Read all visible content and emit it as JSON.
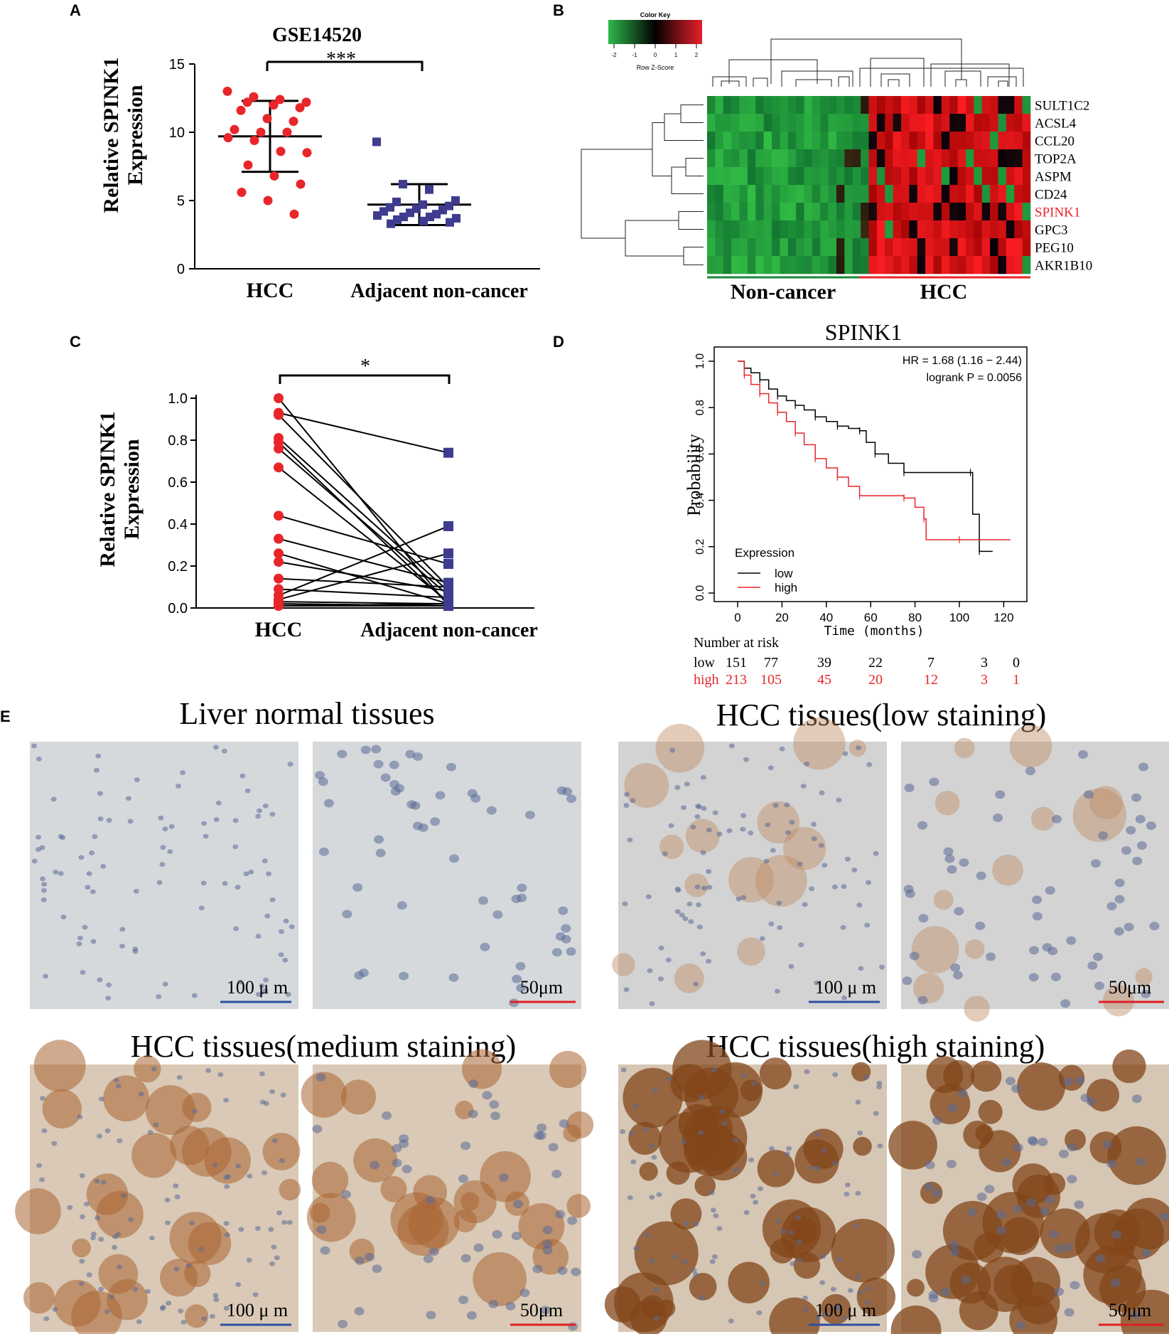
{
  "panel_labels": [
    "A",
    "B",
    "C",
    "D",
    "E"
  ],
  "colors": {
    "red": "#e8262a",
    "blue": "#3f3b8f",
    "black": "#000000",
    "green": "#1a8a3a",
    "scale_blue": "#2d4fa0",
    "scale_red": "#e01e24"
  },
  "chart_data": [
    {
      "panel": "A",
      "type": "scatter",
      "title": "GSE14520",
      "ylabel": "Relative  SPINK1 Expression",
      "ylabel_lines": [
        "Relative  SPINK1",
        "Expression"
      ],
      "categories": [
        "HCC",
        "Adjacent non-cancer"
      ],
      "ylim": [
        0,
        15
      ],
      "yticks": [
        0,
        5,
        10,
        15
      ],
      "significance": "***",
      "series": [
        {
          "marker": "circle",
          "values": [
            13.0,
            12.6,
            12.4,
            12.2,
            12.2,
            12.0,
            11.8,
            11.6,
            11.0,
            10.8,
            10.2,
            10.0,
            10.0,
            9.6,
            9.4,
            8.6,
            8.5,
            7.6,
            6.8,
            6.2,
            5.6,
            5.0,
            4.0
          ],
          "mean": 9.7,
          "sd_low": 7.1,
          "sd_high": 12.3
        },
        {
          "marker": "square",
          "values": [
            9.3,
            6.2,
            5.8,
            5.0,
            4.9,
            4.7,
            4.6,
            4.5,
            4.4,
            4.3,
            4.2,
            4.1,
            4.0,
            3.9,
            3.8,
            3.8,
            3.7,
            3.6,
            3.5,
            3.4,
            3.3
          ],
          "mean": 4.7,
          "sd_low": 3.2,
          "sd_high": 6.2
        }
      ]
    },
    {
      "panel": "B",
      "type": "heatmap",
      "color_key_title": "Color Key",
      "color_key_xlabel": "Row Z-Score",
      "color_key_ticks": [
        "-2",
        "-1",
        "0",
        "1",
        "2"
      ],
      "rows": [
        "SULT1C2",
        "ACSL4",
        "CCL20",
        "TOP2A",
        "ASPM",
        "CD24",
        "SPINK1",
        "GPC3",
        "PEG10",
        "AKR1B10"
      ],
      "highlight_row": "SPINK1",
      "groups": [
        "Non-cancer",
        "HCC"
      ],
      "n_columns": 40,
      "noncancer_columns": 20
    },
    {
      "panel": "C",
      "type": "line",
      "ylabel": "Relative  SPINK1 Expression",
      "ylabel_lines": [
        "Relative  SPINK1",
        "Expression"
      ],
      "categories": [
        "HCC",
        "Adjacent non-cancer"
      ],
      "ylim": [
        0,
        1.0
      ],
      "yticks": [
        "0.0",
        "0.2",
        "0.4",
        "0.6",
        "0.8",
        "1.0"
      ],
      "significance": "*",
      "pairs": [
        [
          1.0,
          0.01
        ],
        [
          0.93,
          0.74
        ],
        [
          0.92,
          0.1
        ],
        [
          0.81,
          0.08
        ],
        [
          0.79,
          0.02
        ],
        [
          0.76,
          0.06
        ],
        [
          0.67,
          0.03
        ],
        [
          0.44,
          0.21
        ],
        [
          0.33,
          0.12
        ],
        [
          0.26,
          0.02
        ],
        [
          0.22,
          0.08
        ],
        [
          0.14,
          0.1
        ],
        [
          0.09,
          0.05
        ],
        [
          0.06,
          0.39
        ],
        [
          0.04,
          0.26
        ],
        [
          0.03,
          0.02
        ],
        [
          0.02,
          0.01
        ],
        [
          0.02,
          0.01
        ],
        [
          0.01,
          0.02
        ],
        [
          0.01,
          0.01
        ]
      ]
    },
    {
      "panel": "D",
      "type": "line",
      "title": "SPINK1",
      "xlabel": "Time (months)",
      "ylabel": "Probability",
      "xlim": [
        0,
        125
      ],
      "ylim": [
        0,
        1.0
      ],
      "xticks": [
        0,
        20,
        40,
        60,
        80,
        100,
        120
      ],
      "yticks": [
        "0.0",
        "0.2",
        "0.4",
        "0.6",
        "0.8",
        "1.0"
      ],
      "annotation": [
        "HR = 1.68 (1.16 − 2.44)",
        "logrank P = 0.0056"
      ],
      "legend_title": "Expression",
      "series": [
        {
          "name": "low",
          "points": [
            [
              0,
              1.0
            ],
            [
              3,
              0.97
            ],
            [
              6,
              0.95
            ],
            [
              10,
              0.92
            ],
            [
              14,
              0.88
            ],
            [
              18,
              0.85
            ],
            [
              22,
              0.83
            ],
            [
              26,
              0.81
            ],
            [
              30,
              0.79
            ],
            [
              35,
              0.76
            ],
            [
              40,
              0.74
            ],
            [
              45,
              0.72
            ],
            [
              50,
              0.71
            ],
            [
              55,
              0.7
            ],
            [
              58,
              0.65
            ],
            [
              62,
              0.6
            ],
            [
              68,
              0.56
            ],
            [
              75,
              0.52
            ],
            [
              90,
              0.52
            ],
            [
              105,
              0.52
            ],
            [
              106,
              0.34
            ],
            [
              109,
              0.18
            ],
            [
              115,
              0.18
            ]
          ]
        },
        {
          "name": "high",
          "points": [
            [
              0,
              1.0
            ],
            [
              3,
              0.94
            ],
            [
              6,
              0.9
            ],
            [
              10,
              0.86
            ],
            [
              14,
              0.82
            ],
            [
              18,
              0.78
            ],
            [
              22,
              0.74
            ],
            [
              26,
              0.69
            ],
            [
              30,
              0.64
            ],
            [
              35,
              0.58
            ],
            [
              40,
              0.54
            ],
            [
              45,
              0.5
            ],
            [
              50,
              0.46
            ],
            [
              55,
              0.42
            ],
            [
              65,
              0.42
            ],
            [
              75,
              0.41
            ],
            [
              80,
              0.37
            ],
            [
              84,
              0.32
            ],
            [
              85,
              0.23
            ],
            [
              100,
              0.23
            ],
            [
              123,
              0.23
            ]
          ]
        }
      ],
      "risk_table": {
        "header": "Number at risk",
        "rows": [
          {
            "name": "low",
            "values": [
              "151",
              "77",
              "39",
              "22",
              "7",
              "3",
              "0"
            ]
          },
          {
            "name": "high",
            "values": [
              "213",
              "105",
              "45",
              "20",
              "12",
              "3",
              "1"
            ]
          }
        ]
      }
    }
  ],
  "panelE": {
    "groups": [
      {
        "title": "Liver normal tissues",
        "scale_left": "100 μ m",
        "scale_right": "50μm",
        "stain": "none"
      },
      {
        "title": "HCC tissues(low staining)",
        "scale_left": "100 μ m",
        "scale_right": "50μm",
        "stain": "low"
      },
      {
        "title": "HCC tissues(medium staining)",
        "scale_left": "100 μ m",
        "scale_right": "50μm",
        "stain": "medium"
      },
      {
        "title": "HCC tissues(high staining)",
        "scale_left": "100 μ m",
        "scale_right": "50μm",
        "stain": "high"
      }
    ]
  }
}
